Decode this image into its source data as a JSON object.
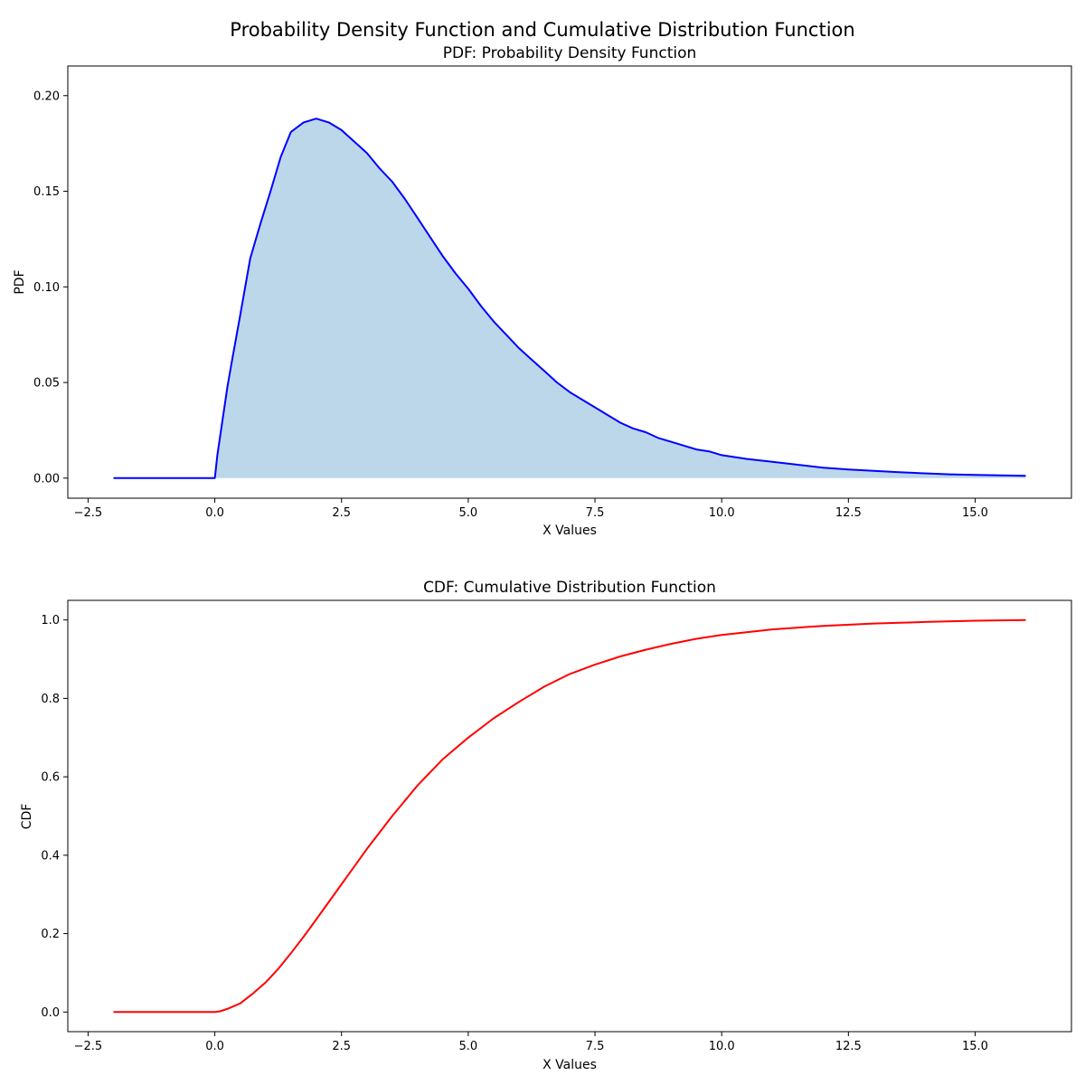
{
  "figure": {
    "suptitle": "Probability Density Function and Cumulative Distribution Function"
  },
  "colors": {
    "pdf_line": "#0000ff",
    "pdf_fill": "#bcd7ea",
    "cdf_line": "#ff0000"
  },
  "chart_data": [
    {
      "type": "area",
      "title": "PDF: Probability Density Function",
      "xlabel": "X Values",
      "ylabel": "PDF",
      "xlim": [
        -2.9,
        16.9
      ],
      "ylim": [
        -0.0105,
        0.2155
      ],
      "xticks": [
        -2.5,
        0.0,
        2.5,
        5.0,
        7.5,
        10.0,
        12.5,
        15.0
      ],
      "xtick_labels": [
        "−2.5",
        "0.0",
        "2.5",
        "5.0",
        "7.5",
        "10.0",
        "12.5",
        "15.0"
      ],
      "yticks": [
        0.0,
        0.05,
        0.1,
        0.15,
        0.2
      ],
      "ytick_labels": [
        "0.00",
        "0.05",
        "0.10",
        "0.15",
        "0.20"
      ],
      "grid": false,
      "series": [
        {
          "x": [
            -2.0,
            0.0,
            0.05,
            0.15,
            0.25,
            0.35,
            0.5,
            0.7,
            0.9,
            1.1,
            1.3,
            1.5,
            1.75,
            2.0,
            2.25,
            2.5,
            2.75,
            3.0,
            3.25,
            3.5,
            3.75,
            4.0,
            4.25,
            4.5,
            4.75,
            5.0,
            5.25,
            5.5,
            5.75,
            6.0,
            6.25,
            6.5,
            6.75,
            7.0,
            7.25,
            7.5,
            7.75,
            8.0,
            8.25,
            8.5,
            8.75,
            9.0,
            9.25,
            9.5,
            9.75,
            10.0,
            10.5,
            11.0,
            11.5,
            12.0,
            12.5,
            13.0,
            13.5,
            14.0,
            14.5,
            15.0,
            15.5,
            16.0
          ],
          "y": [
            0.0,
            0.0,
            0.012,
            0.03,
            0.048,
            0.063,
            0.085,
            0.115,
            0.133,
            0.15,
            0.168,
            0.181,
            0.186,
            0.188,
            0.186,
            0.182,
            0.176,
            0.17,
            0.162,
            0.155,
            0.146,
            0.136,
            0.126,
            0.116,
            0.107,
            0.099,
            0.09,
            0.082,
            0.075,
            0.068,
            0.062,
            0.056,
            0.05,
            0.045,
            0.041,
            0.037,
            0.033,
            0.029,
            0.026,
            0.024,
            0.021,
            0.019,
            0.017,
            0.015,
            0.014,
            0.012,
            0.01,
            0.0085,
            0.007,
            0.0055,
            0.0045,
            0.0038,
            0.0031,
            0.0025,
            0.002,
            0.0017,
            0.0014,
            0.0012
          ]
        }
      ]
    },
    {
      "type": "line",
      "title": "CDF: Cumulative Distribution Function",
      "xlabel": "X Values",
      "ylabel": "CDF",
      "xlim": [
        -2.9,
        16.9
      ],
      "ylim": [
        -0.05,
        1.05
      ],
      "xticks": [
        -2.5,
        0.0,
        2.5,
        5.0,
        7.5,
        10.0,
        12.5,
        15.0
      ],
      "xtick_labels": [
        "−2.5",
        "0.0",
        "2.5",
        "5.0",
        "7.5",
        "10.0",
        "12.5",
        "15.0"
      ],
      "yticks": [
        0.0,
        0.2,
        0.4,
        0.6,
        0.8,
        1.0
      ],
      "ytick_labels": [
        "0.0",
        "0.2",
        "0.4",
        "0.6",
        "0.8",
        "1.0"
      ],
      "grid": false,
      "series": [
        {
          "x": [
            -2.0,
            0.0,
            0.1,
            0.25,
            0.5,
            0.75,
            1.0,
            1.25,
            1.5,
            1.75,
            2.0,
            2.25,
            2.5,
            3.0,
            3.5,
            4.0,
            4.5,
            5.0,
            5.5,
            6.0,
            6.5,
            7.0,
            7.5,
            8.0,
            8.5,
            9.0,
            9.5,
            10.0,
            11.0,
            12.0,
            13.0,
            14.0,
            15.0,
            16.0
          ],
          "y": [
            0.0,
            0.0,
            0.002,
            0.008,
            0.022,
            0.047,
            0.075,
            0.11,
            0.15,
            0.192,
            0.236,
            0.281,
            0.326,
            0.416,
            0.5,
            0.578,
            0.645,
            0.7,
            0.749,
            0.791,
            0.83,
            0.862,
            0.886,
            0.907,
            0.924,
            0.939,
            0.952,
            0.962,
            0.976,
            0.985,
            0.991,
            0.995,
            0.998,
            1.0
          ]
        }
      ]
    }
  ]
}
